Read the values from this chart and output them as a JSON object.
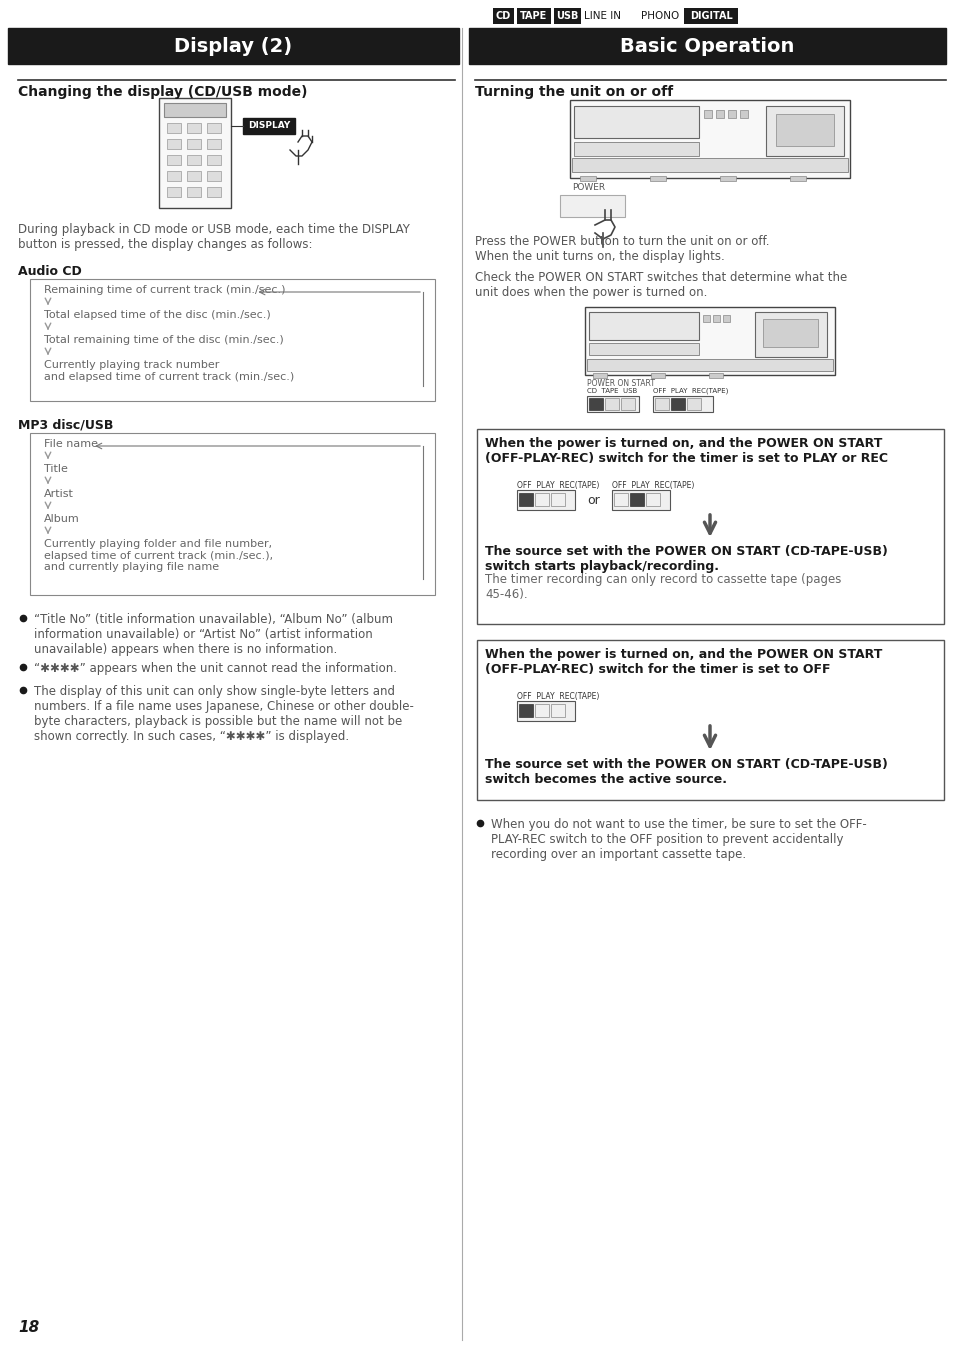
{
  "page_width": 9.54,
  "page_height": 13.5,
  "bg_color": "#ffffff",
  "header_bar_color": "#1a1a1a",
  "header_text_color": "#ffffff",
  "top_tabs": [
    "CD",
    "TAPE",
    "USB",
    "LINE IN",
    "PHONO",
    "DIGITAL"
  ],
  "top_tabs_boxed": [
    true,
    true,
    true,
    false,
    false,
    true
  ],
  "left_header": "Display (2)",
  "right_header": "Basic Operation",
  "left_section_title": "Changing the display (CD/USB mode)",
  "left_body_text": "During playback in CD mode or USB mode, each time the DISPLAY\nbutton is pressed, the display changes as follows:",
  "audio_cd_title": "Audio CD",
  "audio_cd_items": [
    "Remaining time of current track (min./sec.)",
    "Total elapsed time of the disc (min./sec.)",
    "Total remaining time of the disc (min./sec.)",
    "Currently playing track number\nand elapsed time of current track (min./sec.)"
  ],
  "mp3_title": "MP3 disc/USB",
  "mp3_items": [
    "File name",
    "Title",
    "Artist",
    "Album",
    "Currently playing folder and file number,\nelapsed time of current track (min./sec.),\nand currently playing file name"
  ],
  "bullet_items": [
    "“Title No” (title information unavailable), “Album No” (album\ninformation unavailable) or “Artist No” (artist information\nunavailable) appears when there is no information.",
    "“✱✱✱✱” appears when the unit cannot read the information.",
    "The display of this unit can only show single-byte letters and\nnumbers. If a file name uses Japanese, Chinese or other double-\nbyte characters, playback is possible but the name will not be\nshown correctly. In such cases, “✱✱✱✱” is displayed."
  ],
  "right_section_title": "Turning the unit on or off",
  "right_body1": "Press the POWER button to turn the unit on or off.\nWhen the unit turns on, the display lights.",
  "right_body2": "Check the POWER ON START switches that determine what the\nunit does when the power is turned on.",
  "box1_title": "When the power is turned on, and the POWER ON START\n(OFF-PLAY-REC) switch for the timer is set to PLAY or REC",
  "box1_body_bold": "The source set with the POWER ON START (CD-TAPE-USB)\nswitch starts playback/recording.",
  "box1_body_normal": "The timer recording can only record to cassette tape (pages\n45-46).",
  "box2_title": "When the power is turned on, and the POWER ON START\n(OFF-PLAY-REC) switch for the timer is set to OFF",
  "box2_body_bold": "The source set with the POWER ON START (CD-TAPE-USB)\nswitch becomes the active source.",
  "right_bullet": "When you do not want to use the timer, be sure to set the OFF-\nPLAY-REC switch to the OFF position to prevent accidentally\nrecording over an important cassette tape.",
  "page_number": "18"
}
